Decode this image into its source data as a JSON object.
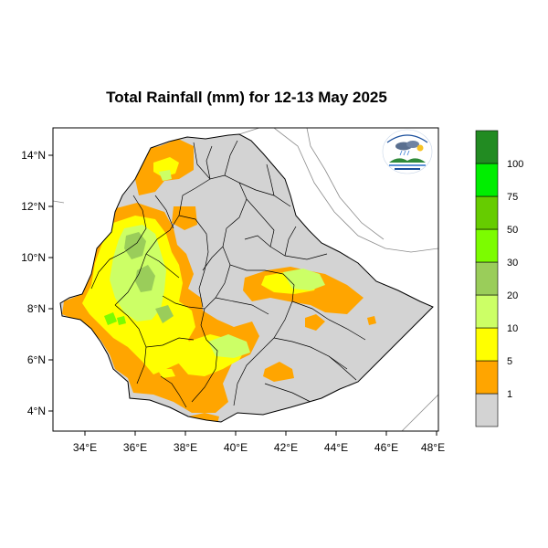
{
  "title": "Total Rainfall (mm) for 12-13 May 2025",
  "axes": {
    "x_ticks": [
      "34°E",
      "36°E",
      "38°E",
      "40°E",
      "42°E",
      "44°E",
      "46°E",
      "48°E"
    ],
    "y_ticks": [
      "14°N",
      "12°N",
      "10°N",
      "8°N",
      "6°N",
      "4°N"
    ]
  },
  "legend": {
    "unit": "mm",
    "bins": [
      {
        "label": "1",
        "color": "#d3d3d3"
      },
      {
        "label": "5",
        "color": "#ffa500"
      },
      {
        "label": "10",
        "color": "#ffff00"
      },
      {
        "label": "20",
        "color": "#ccff66"
      },
      {
        "label": "30",
        "color": "#9acd5a"
      },
      {
        "label": "50",
        "color": "#7cfc00"
      },
      {
        "label": "75",
        "color": "#66cc00"
      },
      {
        "label": "100",
        "color": "#00ee00"
      },
      {
        "label": "",
        "color": "#228b22"
      }
    ]
  },
  "colors": {
    "no_rain": "#d3d3d3",
    "light": "#ffa500",
    "moderate": "#ffff00",
    "heavy": "#ccff66",
    "very_heavy": "#9acd5a",
    "extreme": "#7cfc00",
    "border": "#000000",
    "neighbor_border": "#8c8c8c"
  },
  "icons": {
    "logo": "ethiopian-meteorology-institute-logo"
  }
}
